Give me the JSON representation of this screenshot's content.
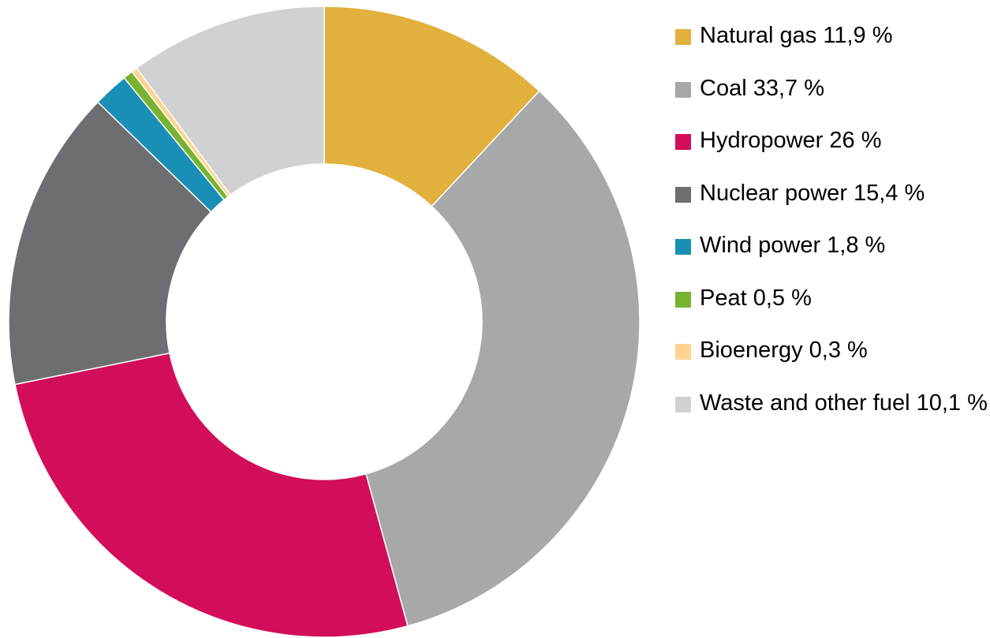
{
  "chart_data": {
    "type": "donut",
    "categories": [
      "Natural gas 11,9 %",
      "Coal 33,7 %",
      "Hydropower 26 %",
      "Nuclear power 15,4 %",
      "Wind power 1,8 %",
      "Peat 0,5 %",
      "Bioenergy 0,3 %",
      "Waste and other fuel 10,1 %"
    ],
    "values": [
      11.9,
      33.7,
      26,
      15.4,
      1.8,
      0.5,
      0.3,
      10.1
    ],
    "colors": [
      "#e2b03c",
      "#a7a8aa",
      "#d20e5a",
      "#6d6e71",
      "#1a8fb5",
      "#77b32f",
      "#ffd38f",
      "#d0d1d3"
    ],
    "legend": "right"
  }
}
